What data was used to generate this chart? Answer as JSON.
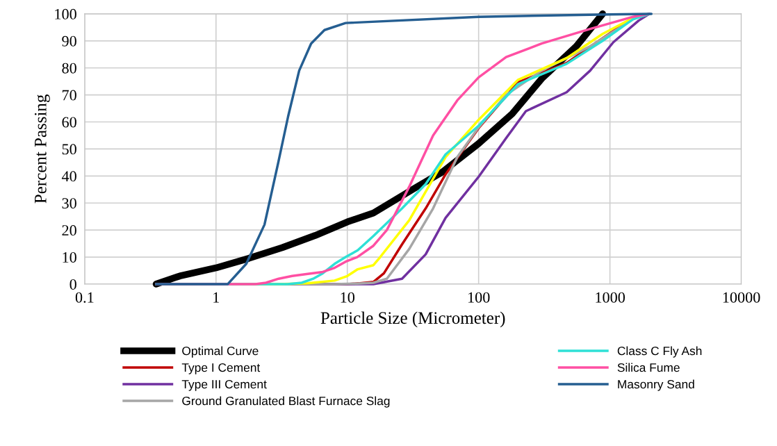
{
  "chart_data": {
    "type": "line",
    "xlabel": "Particle Size (Micrometer)",
    "ylabel": "Percent Passing",
    "log": "x",
    "xlim": [
      0.1,
      10000
    ],
    "xticks": [
      0.1,
      1,
      10,
      100,
      1000,
      10000
    ],
    "ylim": [
      0,
      100
    ],
    "yticks": [
      0,
      10,
      20,
      30,
      40,
      50,
      60,
      70,
      80,
      90,
      100
    ],
    "grid": true,
    "legend": "bottom",
    "line_style": "solid",
    "series": [
      {
        "name": "Optimal Curve",
        "color": "#000000",
        "x": [
          0.35,
          0.53,
          1,
          1.77,
          3.2,
          5.7,
          10,
          15.8,
          32.6,
          53,
          100,
          180,
          302,
          555,
          880
        ],
        "values": [
          0,
          3,
          6,
          9.5,
          13.5,
          18,
          23,
          26.3,
          35.5,
          41.5,
          52,
          63,
          76,
          88,
          100
        ]
      },
      {
        "name": "Type I Cement",
        "color": "#c00000",
        "x": [
          0.35,
          10,
          12.5,
          15.8,
          19,
          26.1,
          39.5,
          56,
          100,
          200,
          468,
          880,
          1500,
          2000
        ],
        "values": [
          0,
          0,
          0.3,
          0.8,
          4,
          14.7,
          28,
          40.6,
          57.7,
          74.7,
          81.8,
          91,
          98.5,
          100
        ]
      },
      {
        "name": "Type III Cement",
        "color": "#7030a0",
        "x": [
          0.35,
          10,
          15.8,
          26.1,
          39.5,
          56,
          100,
          162,
          229,
          468,
          707,
          1062,
          1655,
          2000
        ],
        "values": [
          0,
          0,
          0,
          2,
          11,
          24.5,
          39.7,
          54,
          64,
          71,
          79,
          89.5,
          97.5,
          100
        ]
      },
      {
        "name": "Ground Granulated Blast Furnace Slag",
        "color": "#a6a6a6",
        "x": [
          0.35,
          8,
          12,
          15.8,
          20,
          29.6,
          45,
          68.8,
          100,
          162,
          302,
          707,
          1500,
          2000
        ],
        "values": [
          0,
          0,
          0.2,
          0.5,
          2,
          13,
          28,
          47,
          58,
          70,
          79,
          88,
          98,
          100
        ]
      },
      {
        "color": "#ffff00",
        "x": [
          0.35,
          3,
          5,
          8,
          10,
          12,
          15.8,
          17.8,
          29.6,
          56,
          100,
          200,
          468,
          880,
          1500,
          2000
        ],
        "values": [
          0,
          0,
          0.3,
          1.3,
          3,
          5.5,
          7,
          10,
          23.6,
          47,
          60.8,
          75.6,
          83.6,
          92.6,
          98.5,
          100
        ]
      },
      {
        "name": "Class C Fly Ash",
        "color": "#2ee0d6",
        "x": [
          0.35,
          3.5,
          4.5,
          5.5,
          6.5,
          8,
          9.7,
          12,
          15.8,
          26.1,
          39.5,
          56,
          100,
          200,
          468,
          880,
          1500,
          2000
        ],
        "values": [
          0,
          0,
          0.5,
          2,
          4,
          7.5,
          10,
          12.5,
          17.8,
          28,
          37,
          48,
          58.6,
          74,
          81.5,
          90,
          98,
          100
        ]
      },
      {
        "name": "Silica Fume",
        "color": "#ff4fa3",
        "x": [
          0.35,
          1.5,
          2,
          2.4,
          3,
          3.8,
          5,
          6.5,
          8,
          9.7,
          11.9,
          15.8,
          20,
          29.6,
          45,
          68.8,
          100,
          162,
          302,
          707,
          1500,
          2000
        ],
        "values": [
          0,
          0,
          0,
          0.5,
          2,
          3,
          3.8,
          4.5,
          6,
          8.3,
          10,
          14.2,
          20,
          36,
          55,
          68,
          76.5,
          84,
          89,
          94.4,
          98.9,
          100
        ]
      },
      {
        "name": "Masonry Sand",
        "color": "#255e91",
        "x": [
          0.35,
          1,
          1.23,
          1.7,
          2.34,
          2.98,
          3.54,
          4.3,
          5.3,
          6.7,
          9.7,
          100,
          1000,
          2070
        ],
        "values": [
          0,
          0,
          0,
          7.5,
          22,
          45,
          62,
          79,
          89,
          94,
          96.6,
          98.9,
          99.8,
          100
        ]
      }
    ]
  }
}
